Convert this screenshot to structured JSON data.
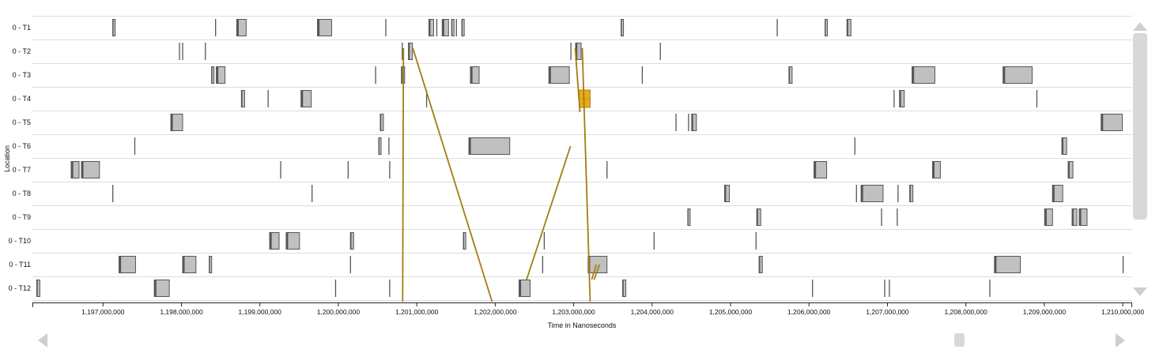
{
  "chart_data": {
    "type": "timeline",
    "xlabel": "Time in Nanoseconds",
    "ylabel": "Location",
    "xlim": [
      1196100000,
      1210120000
    ],
    "x_ticks": [
      1197000000,
      1198000000,
      1199000000,
      1200000000,
      1201000000,
      1202000000,
      1203000000,
      1204000000,
      1205000000,
      1206000000,
      1207000000,
      1208000000,
      1209000000,
      1210000000
    ],
    "x_tick_labels": [
      "1,197,000,000",
      "1,198,000,000",
      "1,199,000,000",
      "1,200,000,000",
      "1,201,000,000",
      "1,202,000,000",
      "1,203,000,000",
      "1,204,000,000",
      "1,205,000,000",
      "1,206,000,000",
      "1,207,000,000",
      "1,208,000,000",
      "1,209,000,000",
      "1,210,000,000"
    ],
    "locations": [
      "0 - T1",
      "0 - T2",
      "0 - T3",
      "0 - T4",
      "0 - T5",
      "0 - T6",
      "0 - T7",
      "0 - T8",
      "0 - T9",
      "0 - T10",
      "0 - T11",
      "0 - T12"
    ],
    "grid": true,
    "colors": {
      "region_fill": "#c0c0c0",
      "region_stroke": "#555555",
      "region_mark": "#555555",
      "highlight_fill": "#e6ac1a",
      "highlight_stroke": "#b08010",
      "message_line": "#a67c12",
      "grid": "#dddddd"
    },
    "events": [
      {
        "loc": 0,
        "start": 1197120000,
        "end": 1197160000
      },
      {
        "loc": 0,
        "start": 1198430000,
        "end": 1198450000
      },
      {
        "loc": 0,
        "start": 1198700000,
        "end": 1198830000
      },
      {
        "loc": 0,
        "start": 1199730000,
        "end": 1199920000
      },
      {
        "loc": 0,
        "start": 1200600000,
        "end": 1200620000
      },
      {
        "loc": 0,
        "start": 1201150000,
        "end": 1201220000
      },
      {
        "loc": 0,
        "start": 1201250000,
        "end": 1201270000
      },
      {
        "loc": 0,
        "start": 1201320000,
        "end": 1201410000
      },
      {
        "loc": 0,
        "start": 1201440000,
        "end": 1201480000
      },
      {
        "loc": 0,
        "start": 1201500000,
        "end": 1201530000
      },
      {
        "loc": 0,
        "start": 1201570000,
        "end": 1201610000
      },
      {
        "loc": 0,
        "start": 1203600000,
        "end": 1203640000
      },
      {
        "loc": 0,
        "start": 1205590000,
        "end": 1205610000
      },
      {
        "loc": 0,
        "start": 1206200000,
        "end": 1206240000
      },
      {
        "loc": 0,
        "start": 1206480000,
        "end": 1206540000
      },
      {
        "loc": 1,
        "start": 1197970000,
        "end": 1197990000
      },
      {
        "loc": 1,
        "start": 1198010000,
        "end": 1198030000
      },
      {
        "loc": 1,
        "start": 1198300000,
        "end": 1198320000
      },
      {
        "loc": 1,
        "start": 1200810000,
        "end": 1200830000
      },
      {
        "loc": 1,
        "start": 1200890000,
        "end": 1200950000
      },
      {
        "loc": 1,
        "start": 1202960000,
        "end": 1202980000
      },
      {
        "loc": 1,
        "start": 1203020000,
        "end": 1203100000
      },
      {
        "loc": 1,
        "start": 1204100000,
        "end": 1204120000
      },
      {
        "loc": 2,
        "start": 1198380000,
        "end": 1198420000
      },
      {
        "loc": 2,
        "start": 1198440000,
        "end": 1198560000
      },
      {
        "loc": 2,
        "start": 1200470000,
        "end": 1200500000
      },
      {
        "loc": 2,
        "start": 1200800000,
        "end": 1200850000
      },
      {
        "loc": 2,
        "start": 1201680000,
        "end": 1201800000
      },
      {
        "loc": 2,
        "start": 1202680000,
        "end": 1202950000
      },
      {
        "loc": 2,
        "start": 1203870000,
        "end": 1203890000
      },
      {
        "loc": 2,
        "start": 1205740000,
        "end": 1205790000
      },
      {
        "loc": 2,
        "start": 1207310000,
        "end": 1207610000
      },
      {
        "loc": 2,
        "start": 1208470000,
        "end": 1208850000
      },
      {
        "loc": 3,
        "start": 1198760000,
        "end": 1198810000
      },
      {
        "loc": 3,
        "start": 1199100000,
        "end": 1199120000
      },
      {
        "loc": 3,
        "start": 1199520000,
        "end": 1199660000
      },
      {
        "loc": 3,
        "start": 1201120000,
        "end": 1201140000
      },
      {
        "loc": 3,
        "start": 1203070000,
        "end": 1203210000,
        "highlight": true
      },
      {
        "loc": 3,
        "start": 1207080000,
        "end": 1207100000
      },
      {
        "loc": 3,
        "start": 1207150000,
        "end": 1207220000
      },
      {
        "loc": 3,
        "start": 1208900000,
        "end": 1208920000
      },
      {
        "loc": 4,
        "start": 1197860000,
        "end": 1198020000
      },
      {
        "loc": 4,
        "start": 1200530000,
        "end": 1200580000
      },
      {
        "loc": 4,
        "start": 1204300000,
        "end": 1204320000
      },
      {
        "loc": 4,
        "start": 1204460000,
        "end": 1204480000
      },
      {
        "loc": 4,
        "start": 1204500000,
        "end": 1204570000
      },
      {
        "loc": 4,
        "start": 1209720000,
        "end": 1210000000
      },
      {
        "loc": 5,
        "start": 1197400000,
        "end": 1197420000
      },
      {
        "loc": 5,
        "start": 1200510000,
        "end": 1200550000
      },
      {
        "loc": 5,
        "start": 1200640000,
        "end": 1200660000
      },
      {
        "loc": 5,
        "start": 1201660000,
        "end": 1202190000
      },
      {
        "loc": 5,
        "start": 1206580000,
        "end": 1206600000
      },
      {
        "loc": 5,
        "start": 1209220000,
        "end": 1209290000
      },
      {
        "loc": 6,
        "start": 1196590000,
        "end": 1196700000
      },
      {
        "loc": 6,
        "start": 1196720000,
        "end": 1196960000
      },
      {
        "loc": 6,
        "start": 1199260000,
        "end": 1199280000
      },
      {
        "loc": 6,
        "start": 1200120000,
        "end": 1200140000
      },
      {
        "loc": 6,
        "start": 1200650000,
        "end": 1200670000
      },
      {
        "loc": 6,
        "start": 1203420000,
        "end": 1203440000
      },
      {
        "loc": 6,
        "start": 1206060000,
        "end": 1206230000
      },
      {
        "loc": 6,
        "start": 1207570000,
        "end": 1207680000
      },
      {
        "loc": 6,
        "start": 1209300000,
        "end": 1209370000
      },
      {
        "loc": 7,
        "start": 1197120000,
        "end": 1197130000
      },
      {
        "loc": 7,
        "start": 1199660000,
        "end": 1199670000
      },
      {
        "loc": 7,
        "start": 1204920000,
        "end": 1204990000
      },
      {
        "loc": 7,
        "start": 1206600000,
        "end": 1206610000
      },
      {
        "loc": 7,
        "start": 1206660000,
        "end": 1206950000
      },
      {
        "loc": 7,
        "start": 1207130000,
        "end": 1207150000
      },
      {
        "loc": 7,
        "start": 1207280000,
        "end": 1207330000
      },
      {
        "loc": 7,
        "start": 1209100000,
        "end": 1209240000
      },
      {
        "loc": 8,
        "start": 1204450000,
        "end": 1204490000
      },
      {
        "loc": 8,
        "start": 1205330000,
        "end": 1205390000
      },
      {
        "loc": 8,
        "start": 1206920000,
        "end": 1206940000
      },
      {
        "loc": 8,
        "start": 1207120000,
        "end": 1207150000
      },
      {
        "loc": 8,
        "start": 1209000000,
        "end": 1209110000
      },
      {
        "loc": 8,
        "start": 1209350000,
        "end": 1209420000
      },
      {
        "loc": 8,
        "start": 1209440000,
        "end": 1209550000
      },
      {
        "loc": 9,
        "start": 1199120000,
        "end": 1199250000
      },
      {
        "loc": 9,
        "start": 1199330000,
        "end": 1199510000
      },
      {
        "loc": 9,
        "start": 1200150000,
        "end": 1200200000
      },
      {
        "loc": 9,
        "start": 1201590000,
        "end": 1201630000
      },
      {
        "loc": 9,
        "start": 1202620000,
        "end": 1202640000
      },
      {
        "loc": 9,
        "start": 1204020000,
        "end": 1204030000
      },
      {
        "loc": 9,
        "start": 1205320000,
        "end": 1205330000
      },
      {
        "loc": 10,
        "start": 1197200000,
        "end": 1197420000
      },
      {
        "loc": 10,
        "start": 1198010000,
        "end": 1198190000
      },
      {
        "loc": 10,
        "start": 1198350000,
        "end": 1198390000
      },
      {
        "loc": 10,
        "start": 1200150000,
        "end": 1200170000
      },
      {
        "loc": 10,
        "start": 1202600000,
        "end": 1202610000
      },
      {
        "loc": 10,
        "start": 1203180000,
        "end": 1203430000
      },
      {
        "loc": 10,
        "start": 1205360000,
        "end": 1205410000
      },
      {
        "loc": 10,
        "start": 1208360000,
        "end": 1208700000
      },
      {
        "loc": 10,
        "start": 1210000000,
        "end": 1210020000
      },
      {
        "loc": 11,
        "start": 1196150000,
        "end": 1196200000
      },
      {
        "loc": 11,
        "start": 1197650000,
        "end": 1197850000
      },
      {
        "loc": 11,
        "start": 1199960000,
        "end": 1199980000
      },
      {
        "loc": 11,
        "start": 1200650000,
        "end": 1200670000
      },
      {
        "loc": 11,
        "start": 1202300000,
        "end": 1202450000
      },
      {
        "loc": 11,
        "start": 1203620000,
        "end": 1203670000
      },
      {
        "loc": 11,
        "start": 1206040000,
        "end": 1206050000
      },
      {
        "loc": 11,
        "start": 1206960000,
        "end": 1206990000
      },
      {
        "loc": 11,
        "start": 1207020000,
        "end": 1207040000
      },
      {
        "loc": 11,
        "start": 1208300000,
        "end": 1208310000
      }
    ],
    "messages": [
      {
        "from_loc": 1,
        "from_time": 1200830000,
        "to_loc": 11,
        "to_time": 1200820000
      },
      {
        "from_loc": 1,
        "from_time": 1200950000,
        "to_loc": 11,
        "to_time": 1201960000
      },
      {
        "from_loc": 11,
        "from_time": 1202400000,
        "to_loc": 5,
        "to_time": 1202960000
      },
      {
        "from_loc": 1,
        "from_time": 1203020000,
        "to_loc": 3,
        "to_time": 1203080000
      },
      {
        "from_loc": 1,
        "from_time": 1203110000,
        "to_loc": 11,
        "to_time": 1203210000
      },
      {
        "from_loc": 11,
        "from_time": 1203230000,
        "to_loc": 10,
        "to_time": 1203290000
      },
      {
        "from_loc": 11,
        "from_time": 1203260000,
        "to_loc": 10,
        "to_time": 1203330000
      }
    ]
  }
}
